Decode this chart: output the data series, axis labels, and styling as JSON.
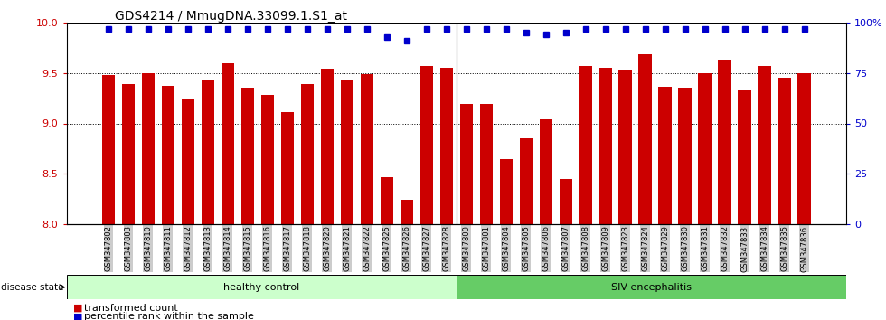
{
  "title": "GDS4214 / MmugDNA.33099.1.S1_at",
  "categories": [
    "GSM347802",
    "GSM347803",
    "GSM347810",
    "GSM347811",
    "GSM347812",
    "GSM347813",
    "GSM347814",
    "GSM347815",
    "GSM347816",
    "GSM347817",
    "GSM347818",
    "GSM347820",
    "GSM347821",
    "GSM347822",
    "GSM347825",
    "GSM347826",
    "GSM347827",
    "GSM347828",
    "GSM347800",
    "GSM347801",
    "GSM347804",
    "GSM347805",
    "GSM347806",
    "GSM347807",
    "GSM347808",
    "GSM347809",
    "GSM347823",
    "GSM347824",
    "GSM347829",
    "GSM347830",
    "GSM347831",
    "GSM347832",
    "GSM347833",
    "GSM347834",
    "GSM347835",
    "GSM347836"
  ],
  "bar_values": [
    9.48,
    9.39,
    9.5,
    9.37,
    9.25,
    9.43,
    9.6,
    9.35,
    9.28,
    9.11,
    9.39,
    9.54,
    9.43,
    9.49,
    8.47,
    8.24,
    9.57,
    9.55,
    9.19,
    9.19,
    8.65,
    8.85,
    9.04,
    8.45,
    9.57,
    9.55,
    9.53,
    9.69,
    9.36,
    9.35,
    9.5,
    9.63,
    9.33,
    9.57,
    9.45,
    9.5
  ],
  "percentile_values": [
    97,
    97,
    97,
    97,
    97,
    97,
    97,
    97,
    97,
    97,
    97,
    97,
    97,
    97,
    93,
    91,
    97,
    97,
    97,
    97,
    97,
    95,
    94,
    95,
    97,
    97,
    97,
    97,
    97,
    97,
    97,
    97,
    97,
    97,
    97,
    97
  ],
  "bar_color": "#CC0000",
  "percentile_color": "#0000CC",
  "ylim_left": [
    8.0,
    10.0
  ],
  "ylim_right": [
    0,
    100
  ],
  "yticks_left": [
    8.0,
    8.5,
    9.0,
    9.5,
    10.0
  ],
  "yticks_right": [
    0,
    25,
    50,
    75,
    100
  ],
  "healthy_count": 18,
  "siv_count": 18,
  "healthy_label": "healthy control",
  "siv_label": "SIV encephalitis",
  "healthy_color": "#ccffcc",
  "siv_color": "#66cc66",
  "disease_state_label": "disease state",
  "legend_bar_label": "transformed count",
  "legend_pct_label": "percentile rank within the sample",
  "background_color": "#ffffff",
  "tick_bg_color": "#cccccc"
}
